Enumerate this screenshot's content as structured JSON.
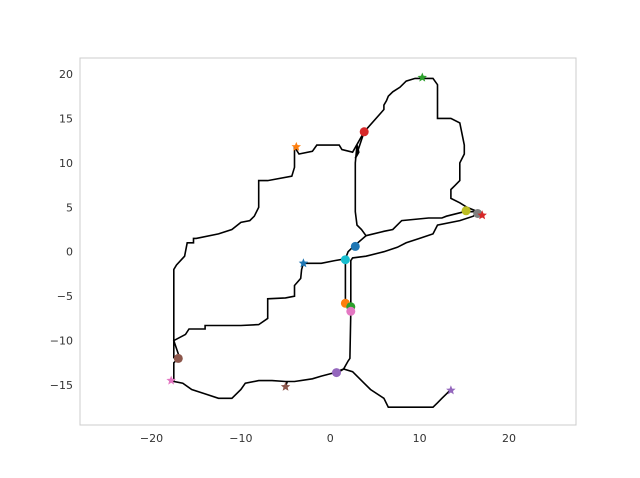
{
  "chart_data": {
    "type": "scatter",
    "title": "",
    "xlabel": "",
    "ylabel": "",
    "xlim": [
      -28,
      27.5
    ],
    "ylim": [
      -19.5,
      21.8
    ],
    "grid": false,
    "xticks": [
      -20,
      -10,
      0,
      10,
      20
    ],
    "yticks": [
      -15,
      -10,
      -5,
      0,
      5,
      10,
      15,
      20
    ],
    "line_color": "#000000",
    "paths": [
      {
        "points": [
          [
            2.5,
            0.5
          ],
          [
            4.0,
            1.8
          ],
          [
            3.5,
            2.5
          ],
          [
            3.0,
            3.0
          ],
          [
            2.8,
            4.5
          ],
          [
            2.8,
            8.0
          ],
          [
            2.8,
            10.0
          ],
          [
            3.0,
            12.0
          ],
          [
            3.2,
            11.2
          ],
          [
            2.8,
            10.5
          ],
          [
            3.8,
            13.5
          ]
        ]
      },
      {
        "points": [
          [
            3.8,
            13.5
          ],
          [
            6.0,
            16.0
          ],
          [
            6.0,
            16.5
          ],
          [
            6.3,
            17.0
          ],
          [
            6.5,
            17.5
          ],
          [
            7.0,
            18.0
          ],
          [
            7.8,
            18.5
          ],
          [
            8.5,
            19.2
          ],
          [
            9.5,
            19.5
          ],
          [
            10.5,
            19.5
          ],
          [
            11.5,
            19.5
          ],
          [
            12.0,
            18.8
          ],
          [
            12.0,
            15.0
          ],
          [
            13.5,
            15.0
          ],
          [
            14.5,
            14.5
          ],
          [
            14.8,
            13.0
          ],
          [
            15.0,
            12.0
          ],
          [
            15.0,
            11.0
          ],
          [
            14.5,
            10.0
          ],
          [
            14.5,
            8.0
          ],
          [
            14.0,
            7.5
          ],
          [
            13.5,
            7.0
          ],
          [
            13.5,
            6.0
          ],
          [
            14.5,
            5.5
          ],
          [
            15.3,
            5.0
          ],
          [
            16.5,
            4.5
          ],
          [
            17.0,
            4.0
          ]
        ]
      },
      {
        "points": [
          [
            16.5,
            4.5
          ],
          [
            15.0,
            4.5
          ],
          [
            13.0,
            4.0
          ],
          [
            12.5,
            3.8
          ],
          [
            11.0,
            3.8
          ],
          [
            8.0,
            3.5
          ],
          [
            7.0,
            2.5
          ],
          [
            6.0,
            2.3
          ],
          [
            4.0,
            1.8
          ]
        ]
      },
      {
        "points": [
          [
            16.5,
            4.5
          ],
          [
            16.0,
            4.0
          ],
          [
            14.5,
            3.5
          ],
          [
            12.0,
            3.0
          ],
          [
            11.5,
            2.0
          ],
          [
            10.0,
            1.5
          ],
          [
            8.5,
            1.0
          ],
          [
            7.5,
            0.5
          ],
          [
            6.0,
            0.0
          ],
          [
            4.0,
            -0.5
          ],
          [
            2.5,
            -0.7
          ],
          [
            2.3,
            -1.0
          ],
          [
            2.3,
            -6.5
          ]
        ]
      },
      {
        "points": [
          [
            2.5,
            0.5
          ],
          [
            2.0,
            0.0
          ],
          [
            1.7,
            -0.8
          ],
          [
            1.7,
            -5.8
          ],
          [
            2.0,
            -6.5
          ],
          [
            2.3,
            -6.8
          ],
          [
            2.2,
            -12.0
          ],
          [
            2.0,
            -12.3
          ],
          [
            1.5,
            -13.2
          ],
          [
            1.0,
            -13.5
          ],
          [
            0.5,
            -13.6
          ]
        ]
      },
      {
        "points": [
          [
            1.7,
            -0.8
          ],
          [
            0.5,
            -1.0
          ],
          [
            -1.0,
            -1.3
          ],
          [
            -3.0,
            -1.3
          ]
        ]
      },
      {
        "points": [
          [
            -3.0,
            -1.3
          ],
          [
            -3.2,
            -2.0
          ],
          [
            -3.3,
            -3.0
          ],
          [
            -4.0,
            -3.8
          ],
          [
            -4.0,
            -5.0
          ],
          [
            -5.0,
            -5.2
          ],
          [
            -7.0,
            -5.3
          ],
          [
            -7.0,
            -7.5
          ],
          [
            -8.0,
            -8.2
          ],
          [
            -10.0,
            -8.3
          ],
          [
            -14.0,
            -8.3
          ],
          [
            -14.0,
            -8.7
          ],
          [
            -15.8,
            -8.7
          ],
          [
            -16.2,
            -9.3
          ],
          [
            -17.5,
            -10.0
          ],
          [
            -17.0,
            -11.5
          ],
          [
            -17.0,
            -12.0
          ]
        ]
      },
      {
        "points": [
          [
            -4.0,
            11.8
          ],
          [
            -3.5,
            11.0
          ],
          [
            -2.0,
            11.3
          ],
          [
            -1.5,
            12.0
          ],
          [
            1.0,
            12.0
          ],
          [
            1.3,
            11.5
          ],
          [
            2.5,
            11.2
          ],
          [
            3.8,
            13.5
          ]
        ]
      },
      {
        "points": [
          [
            -4.0,
            11.8
          ],
          [
            -4.0,
            9.5
          ],
          [
            -4.3,
            8.5
          ],
          [
            -7.0,
            8.0
          ],
          [
            -8.0,
            8.0
          ],
          [
            -8.0,
            5.0
          ],
          [
            -8.5,
            4.0
          ],
          [
            -9.0,
            3.5
          ],
          [
            -10.0,
            3.3
          ],
          [
            -11.0,
            2.5
          ],
          [
            -12.5,
            2.0
          ],
          [
            -15.0,
            1.5
          ],
          [
            -15.3,
            1.5
          ],
          [
            -15.3,
            1.0
          ],
          [
            -16.0,
            1.0
          ],
          [
            -16.3,
            -0.5
          ],
          [
            -17.2,
            -1.5
          ],
          [
            -17.5,
            -2.0
          ],
          [
            -17.5,
            -12.0
          ]
        ]
      },
      {
        "points": [
          [
            -18.0,
            -14.5
          ],
          [
            -16.5,
            -14.8
          ],
          [
            -15.5,
            -15.5
          ],
          [
            -14.0,
            -16.0
          ],
          [
            -12.5,
            -16.5
          ],
          [
            -11.0,
            -16.5
          ],
          [
            -10.0,
            -15.5
          ],
          [
            -9.5,
            -14.8
          ],
          [
            -8.0,
            -14.5
          ],
          [
            -6.5,
            -14.5
          ],
          [
            -5.0,
            -14.6
          ],
          [
            -4.0,
            -14.6
          ],
          [
            -2.0,
            -14.3
          ],
          [
            -1.0,
            -14.0
          ],
          [
            0.5,
            -13.6
          ]
        ]
      },
      {
        "points": [
          [
            -17.0,
            -12.0
          ],
          [
            -17.5,
            -12.5
          ],
          [
            -17.5,
            -14.5
          ],
          [
            -18.0,
            -14.5
          ]
        ]
      },
      {
        "points": [
          [
            -5.0,
            -15.2
          ],
          [
            -4.8,
            -14.6
          ]
        ]
      },
      {
        "points": [
          [
            0.5,
            -13.6
          ],
          [
            1.5,
            -13.2
          ],
          [
            2.5,
            -13.5
          ],
          [
            3.5,
            -14.5
          ],
          [
            4.5,
            -15.5
          ],
          [
            6.0,
            -16.5
          ],
          [
            6.5,
            -17.5
          ],
          [
            8.0,
            -17.5
          ],
          [
            10.0,
            -17.5
          ],
          [
            11.5,
            -17.5
          ],
          [
            12.0,
            -17.0
          ],
          [
            12.5,
            -16.5
          ],
          [
            13.0,
            -16.0
          ],
          [
            13.5,
            -15.5
          ]
        ]
      }
    ],
    "markers": [
      {
        "shape": "circle",
        "x": 2.8,
        "y": 0.6,
        "color": "#1f77b4"
      },
      {
        "shape": "circle",
        "x": 1.7,
        "y": -5.8,
        "color": "#ff7f0e"
      },
      {
        "shape": "circle",
        "x": 2.3,
        "y": -6.2,
        "color": "#2ca02c"
      },
      {
        "shape": "circle",
        "x": 3.8,
        "y": 13.5,
        "color": "#d62728"
      },
      {
        "shape": "circle",
        "x": 0.7,
        "y": -13.6,
        "color": "#9467bd"
      },
      {
        "shape": "circle",
        "x": -17.0,
        "y": -12.0,
        "color": "#8c564b"
      },
      {
        "shape": "circle",
        "x": 2.3,
        "y": -6.7,
        "color": "#e377c2"
      },
      {
        "shape": "circle",
        "x": 16.5,
        "y": 4.3,
        "color": "#7f7f7f"
      },
      {
        "shape": "circle",
        "x": 15.2,
        "y": 4.6,
        "color": "#bcbd22"
      },
      {
        "shape": "circle",
        "x": 1.7,
        "y": -0.9,
        "color": "#17becf"
      },
      {
        "shape": "star",
        "x": -3.0,
        "y": -1.3,
        "color": "#1f77b4"
      },
      {
        "shape": "star",
        "x": -3.8,
        "y": 11.8,
        "color": "#ff7f0e"
      },
      {
        "shape": "star",
        "x": 10.3,
        "y": 19.6,
        "color": "#2ca02c"
      },
      {
        "shape": "star",
        "x": 17.0,
        "y": 4.1,
        "color": "#d62728"
      },
      {
        "shape": "star",
        "x": 13.5,
        "y": -15.6,
        "color": "#9467bd"
      },
      {
        "shape": "star",
        "x": -5.0,
        "y": -15.2,
        "color": "#8c564b"
      },
      {
        "shape": "star",
        "x": -17.8,
        "y": -14.5,
        "color": "#e377c2"
      }
    ]
  }
}
